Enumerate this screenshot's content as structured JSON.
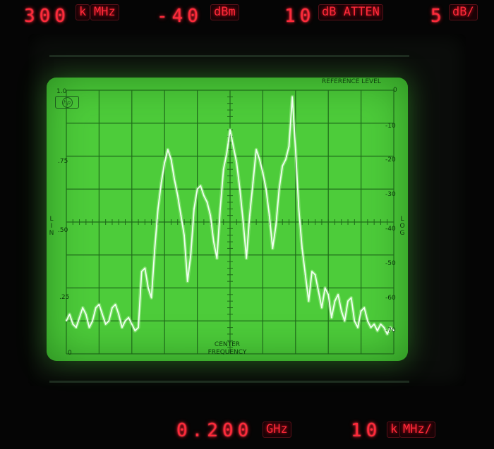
{
  "top_display": {
    "span_value": "300",
    "span_unit_k": "k",
    "span_unit_hz": "MHz",
    "ref_level_value": "-40",
    "ref_level_unit": "dBm",
    "atten_value": "10",
    "atten_unit": "dB ATTEN",
    "scale_value": "5",
    "scale_unit": "dB/"
  },
  "bottom_display": {
    "center_value": "0.200",
    "center_unit": "GHz",
    "res_bw_value": "10",
    "res_bw_unit_k": "k",
    "res_bw_unit": "MHz/"
  },
  "screen": {
    "reference_level_label": "REFERENCE LEVEL",
    "center_label_line1": "CENTER",
    "center_label_line2": "FREQUENCY",
    "lin_scale": [
      "1.0",
      ".75",
      ".50",
      ".25",
      "0"
    ],
    "log_scale": [
      "0",
      "-10",
      "-20",
      "-30",
      "-40",
      "-50",
      "-60",
      "-70"
    ],
    "left_side_label": [
      "L",
      "I",
      "N"
    ],
    "right_side_label": [
      "L",
      "O",
      "G"
    ],
    "logo_text": "hp"
  },
  "colors": {
    "led_red": "#ff2a3a",
    "phosphor_green": "#4dcc3a",
    "trace": "#e8ffe0"
  },
  "chart_data": {
    "type": "line",
    "ylabel": "",
    "xlabel": "",
    "ylim": [
      -80,
      0
    ],
    "grid": true,
    "x": [
      0,
      1,
      2,
      3,
      4,
      5,
      6,
      7,
      8,
      9,
      10,
      11,
      12,
      13,
      14,
      15,
      16,
      17,
      18,
      19,
      20,
      21,
      22,
      23,
      24,
      25,
      26,
      27,
      28,
      29,
      30,
      31,
      32,
      33,
      34,
      35,
      36,
      37,
      38,
      39,
      40,
      41,
      42,
      43,
      44,
      45,
      46,
      47,
      48,
      49,
      50,
      51,
      52,
      53,
      54,
      55,
      56,
      57,
      58,
      59,
      60,
      61,
      62,
      63,
      64,
      65,
      66,
      67,
      68,
      69,
      70,
      71,
      72,
      73,
      74,
      75,
      76,
      77,
      78,
      79,
      80,
      81,
      82,
      83,
      84,
      85,
      86,
      87,
      88,
      89,
      90,
      91,
      92,
      93,
      94,
      95,
      96,
      97,
      98,
      99,
      100
    ],
    "series": [
      {
        "values": [
          -70,
          -68,
          -71,
          -72,
          -69,
          -66,
          -68,
          -72,
          -70,
          -66,
          -65,
          -68,
          -71,
          -70,
          -66,
          -65,
          -68,
          -72,
          -70,
          -69,
          -71,
          -73,
          -72,
          -55,
          -54,
          -60,
          -63,
          -48,
          -36,
          -28,
          -22,
          -18,
          -21,
          -27,
          -32,
          -38,
          -44,
          -58,
          -50,
          -36,
          -30,
          -29,
          -32,
          -34,
          -38,
          -46,
          -51,
          -36,
          -24,
          -19,
          -12,
          -17,
          -22,
          -30,
          -40,
          -51,
          -38,
          -28,
          -18,
          -21,
          -25,
          -30,
          -38,
          -48,
          -41,
          -30,
          -23,
          -21,
          -17,
          -2,
          -18,
          -36,
          -48,
          -56,
          -64,
          -55,
          -56,
          -61,
          -66,
          -60,
          -62,
          -69,
          -64,
          -62,
          -67,
          -70,
          -64,
          -63,
          -70,
          -72,
          -67,
          -66,
          -70,
          -72,
          -71,
          -73,
          -71,
          -72,
          -74,
          -72,
          -73
        ]
      }
    ]
  }
}
